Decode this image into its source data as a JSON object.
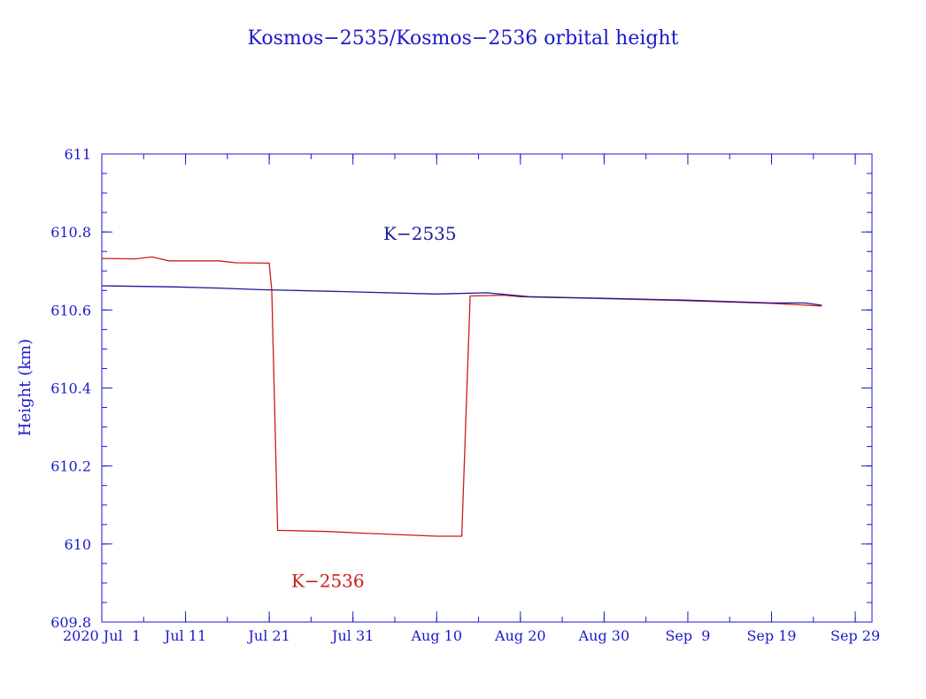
{
  "chart_data": {
    "type": "line",
    "title": "Kosmos−2535/Kosmos−2536 orbital height",
    "ylabel": "Height (km)",
    "xlabel": "",
    "xlim": [
      "2020-07-01",
      "2020-10-01"
    ],
    "ylim": [
      609.8,
      611
    ],
    "y_ticks": [
      609.8,
      610,
      610.2,
      610.4,
      610.6,
      610.8,
      611
    ],
    "y_tick_labels": [
      "609.8",
      "610",
      "610.2",
      "610.4",
      "610.6",
      "610.8",
      "611"
    ],
    "x_ticks": [
      "2020-07-01",
      "2020-07-11",
      "2020-07-21",
      "2020-07-31",
      "2020-08-10",
      "2020-08-20",
      "2020-08-30",
      "2020-09-09",
      "2020-09-19",
      "2020-09-29"
    ],
    "x_tick_labels": [
      "2020 Jul  1",
      "Jul 11",
      "Jul 21",
      "Jul 31",
      "Aug 10",
      "Aug 20",
      "Aug 30",
      "Sep  9",
      "Sep 19",
      "Sep 29"
    ],
    "grid": false,
    "series": [
      {
        "name": "K−2535",
        "color": "#1a1a99",
        "label_at": [
          "2020-08-08",
          610.78
        ],
        "points": [
          [
            "2020-07-01",
            610.662
          ],
          [
            "2020-07-10",
            610.659
          ],
          [
            "2020-07-15",
            610.656
          ],
          [
            "2020-07-20",
            610.652
          ],
          [
            "2020-07-30",
            610.647
          ],
          [
            "2020-08-10",
            610.641
          ],
          [
            "2020-08-16",
            610.644
          ],
          [
            "2020-08-21",
            610.634
          ],
          [
            "2020-08-30",
            610.63
          ],
          [
            "2020-09-09",
            610.625
          ],
          [
            "2020-09-15",
            610.621
          ],
          [
            "2020-09-19",
            610.618
          ],
          [
            "2020-09-23",
            610.618
          ],
          [
            "2020-09-25",
            610.612
          ]
        ]
      },
      {
        "name": "K−2536",
        "color": "#cc1a1a",
        "label_at": [
          "2020-07-28",
          609.89
        ],
        "points": [
          [
            "2020-07-01",
            610.732
          ],
          [
            "2020-07-05",
            610.731
          ],
          [
            "2020-07-07",
            610.736
          ],
          [
            "2020-07-09",
            610.726
          ],
          [
            "2020-07-15",
            610.726
          ],
          [
            "2020-07-17",
            610.721
          ],
          [
            "2020-07-21",
            610.72
          ],
          [
            "2020-07-21.3",
            610.65
          ],
          [
            "2020-07-22",
            610.035
          ],
          [
            "2020-07-28",
            610.032
          ],
          [
            "2020-08-01",
            610.028
          ],
          [
            "2020-08-10",
            610.02
          ],
          [
            "2020-08-13",
            610.02
          ],
          [
            "2020-08-14",
            610.636
          ],
          [
            "2020-08-18",
            610.638
          ],
          [
            "2020-08-20",
            610.634
          ],
          [
            "2020-08-30",
            610.629
          ],
          [
            "2020-09-09",
            610.624
          ],
          [
            "2020-09-19",
            610.617
          ],
          [
            "2020-09-25",
            610.61
          ]
        ]
      }
    ]
  }
}
